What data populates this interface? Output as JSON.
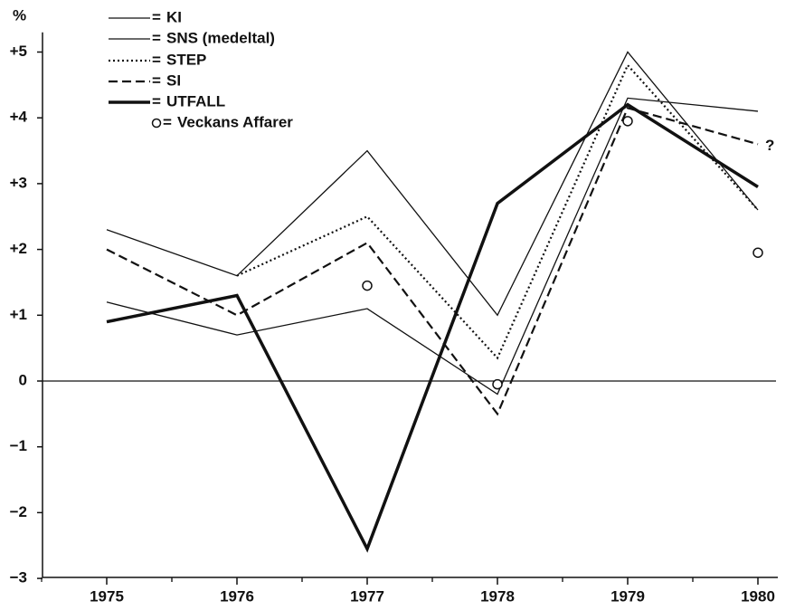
{
  "chart_data": {
    "type": "line",
    "y_label": "%",
    "legend_separator": "=",
    "annotation": "?",
    "categories": [
      "1975",
      "1976",
      "1977",
      "1978",
      "1979",
      "1980"
    ],
    "series": [
      {
        "name": "KI",
        "color": "#111111",
        "style": "solid",
        "width": 1.3,
        "values": [
          2.3,
          1.6,
          3.5,
          1.0,
          5.0,
          2.6
        ]
      },
      {
        "name": "SNS (medeltal)",
        "color": "#111111",
        "style": "solid",
        "width": 1.3,
        "values": [
          1.2,
          0.7,
          1.1,
          -0.2,
          4.3,
          4.1
        ]
      },
      {
        "name": "STEP",
        "color": "#111111",
        "style": "dotted",
        "width": 2.2,
        "values": [
          null,
          1.6,
          2.5,
          0.35,
          4.8,
          2.6
        ]
      },
      {
        "name": "SI",
        "color": "#111111",
        "style": "dashed",
        "width": 2.2,
        "values": [
          2.0,
          1.0,
          2.1,
          -0.5,
          4.15,
          3.6
        ]
      },
      {
        "name": "UTFALL",
        "color": "#111111",
        "style": "solid",
        "width": 3.5,
        "values": [
          0.9,
          1.3,
          -2.55,
          2.7,
          4.2,
          2.95
        ]
      },
      {
        "name": "Veckans Affarer",
        "color": "#111111",
        "style": "marker",
        "width": 1.5,
        "values": [
          null,
          null,
          1.45,
          -0.05,
          3.95,
          1.95
        ]
      }
    ],
    "ylim": [
      -3,
      5.3
    ],
    "yticks": [
      {
        "value": -3,
        "label": "−3"
      },
      {
        "value": -2,
        "label": "−2"
      },
      {
        "value": -1,
        "label": "−1"
      },
      0,
      {
        "value": 1,
        "label": "+1"
      },
      {
        "value": 2,
        "label": "+2"
      },
      {
        "value": 3,
        "label": "+3"
      },
      {
        "value": 4,
        "label": "+4"
      },
      {
        "value": 5,
        "label": "+5"
      }
    ],
    "zero_line": true
  }
}
